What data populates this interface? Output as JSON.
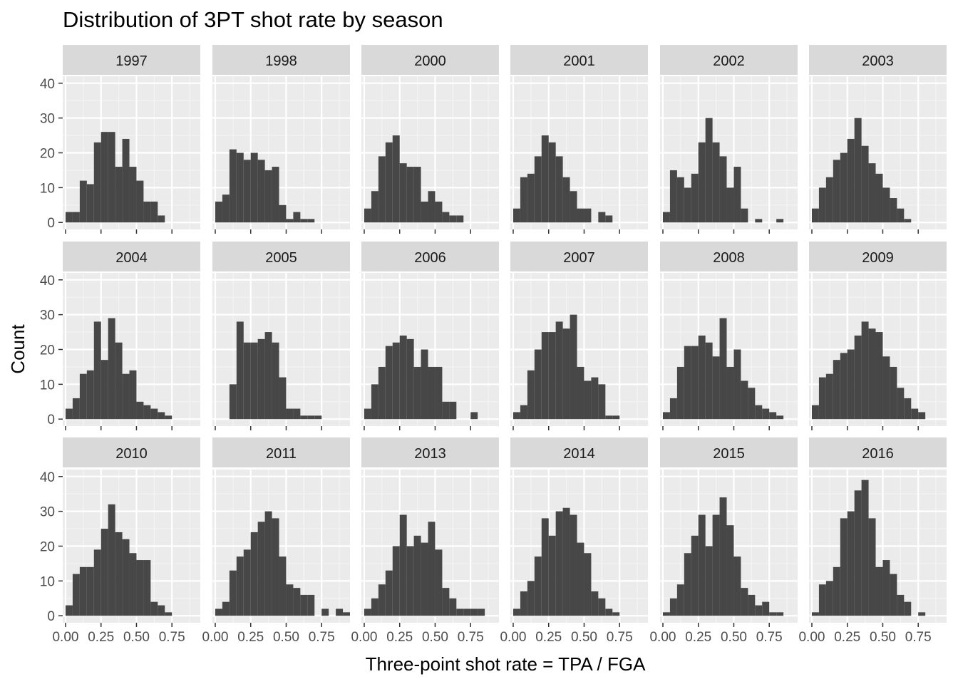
{
  "chart_data": {
    "type": "bar",
    "title": "Distribution of 3PT shot rate by season",
    "xlabel": "Three-point shot rate = TPA / FGA",
    "ylabel": "Count",
    "xlim": [
      -0.02,
      0.95
    ],
    "ylim": [
      -2,
      42
    ],
    "bin_width": 0.05,
    "first_bin_center": 0.025,
    "x_ticks": [
      0.0,
      0.25,
      0.5,
      0.75
    ],
    "x_tick_labels": [
      "0.00",
      "0.25",
      "0.50",
      "0.75"
    ],
    "y_ticks": [
      0,
      10,
      20,
      30,
      40
    ],
    "y_tick_labels": [
      "0",
      "10",
      "20",
      "30",
      "40"
    ],
    "ncol": 6,
    "panels": [
      {
        "label": "1997",
        "counts": [
          3,
          3,
          12,
          11,
          23,
          26,
          26,
          16,
          24,
          16,
          12,
          6,
          6,
          2,
          0,
          0,
          0,
          0,
          0
        ]
      },
      {
        "label": "1998",
        "counts": [
          6,
          8,
          21,
          20,
          18,
          20,
          18,
          15,
          16,
          5,
          1,
          3,
          1,
          1,
          0,
          0,
          0,
          0,
          0
        ]
      },
      {
        "label": "2000",
        "counts": [
          4,
          9,
          19,
          23,
          25,
          17,
          16,
          16,
          6,
          9,
          6,
          3,
          2,
          2,
          0,
          0,
          0,
          0,
          0
        ]
      },
      {
        "label": "2001",
        "counts": [
          4,
          13,
          14,
          19,
          25,
          23,
          19,
          13,
          9,
          4,
          4,
          0,
          3,
          2,
          0,
          0,
          0,
          0,
          0
        ]
      },
      {
        "label": "2002",
        "counts": [
          3,
          15,
          13,
          10,
          14,
          23,
          30,
          23,
          19,
          10,
          16,
          4,
          0,
          1,
          0,
          0,
          1,
          0,
          0
        ]
      },
      {
        "label": "2003",
        "counts": [
          4,
          10,
          13,
          18,
          20,
          24,
          30,
          22,
          17,
          14,
          10,
          7,
          4,
          1,
          0,
          0,
          0,
          0,
          0
        ]
      },
      {
        "label": "2004",
        "counts": [
          3,
          6,
          13,
          14,
          28,
          17,
          29,
          22,
          13,
          14,
          5,
          4,
          3,
          2,
          1,
          0,
          0,
          0,
          0
        ]
      },
      {
        "label": "2005",
        "counts": [
          0,
          0,
          10,
          28,
          22,
          22,
          23,
          25,
          22,
          12,
          3,
          3,
          1,
          1,
          1,
          0,
          0,
          0,
          0
        ]
      },
      {
        "label": "2006",
        "counts": [
          3,
          10,
          15,
          21,
          22,
          24,
          23,
          15,
          20,
          15,
          15,
          5,
          5,
          0,
          0,
          2,
          0,
          0,
          0
        ]
      },
      {
        "label": "2007",
        "counts": [
          2,
          4,
          14,
          20,
          25,
          25,
          28,
          26,
          30,
          15,
          11,
          12,
          10,
          1,
          1,
          0,
          0,
          0,
          0
        ]
      },
      {
        "label": "2008",
        "counts": [
          2,
          6,
          15,
          21,
          21,
          24,
          22,
          18,
          29,
          15,
          20,
          11,
          9,
          4,
          3,
          2,
          1,
          0,
          0
        ]
      },
      {
        "label": "2009",
        "counts": [
          4,
          12,
          13,
          17,
          19,
          20,
          24,
          28,
          26,
          25,
          18,
          15,
          9,
          6,
          3,
          2,
          0,
          0,
          0
        ]
      },
      {
        "label": "2010",
        "counts": [
          3,
          12,
          14,
          14,
          19,
          25,
          32,
          24,
          22,
          18,
          16,
          16,
          4,
          3,
          1,
          0,
          0,
          0,
          0
        ]
      },
      {
        "label": "2011",
        "counts": [
          2,
          4,
          13,
          17,
          19,
          24,
          27,
          30,
          28,
          17,
          9,
          8,
          6,
          6,
          0,
          2,
          0,
          2,
          1
        ]
      },
      {
        "label": "2013",
        "counts": [
          2,
          5,
          9,
          13,
          20,
          29,
          20,
          23,
          21,
          27,
          19,
          8,
          5,
          2,
          2,
          2,
          2,
          0,
          0
        ]
      },
      {
        "label": "2014",
        "counts": [
          2,
          7,
          10,
          17,
          28,
          23,
          30,
          31,
          29,
          21,
          18,
          7,
          5,
          2,
          1,
          0,
          0,
          0,
          0
        ]
      },
      {
        "label": "2015",
        "counts": [
          1,
          5,
          9,
          18,
          23,
          29,
          20,
          29,
          34,
          26,
          17,
          8,
          6,
          3,
          4,
          1,
          1,
          0,
          0
        ]
      },
      {
        "label": "2016",
        "counts": [
          1,
          9,
          10,
          14,
          28,
          30,
          36,
          39,
          28,
          14,
          16,
          12,
          6,
          4,
          0,
          1,
          0,
          0,
          0
        ]
      }
    ],
    "colors": {
      "panel_bg": "#ebebeb",
      "grid_major": "#ffffff",
      "grid_minor": "#f4f4f4",
      "strip_bg": "#d9d9d9",
      "bar_fill": "#474747",
      "tick": "#333333"
    }
  }
}
